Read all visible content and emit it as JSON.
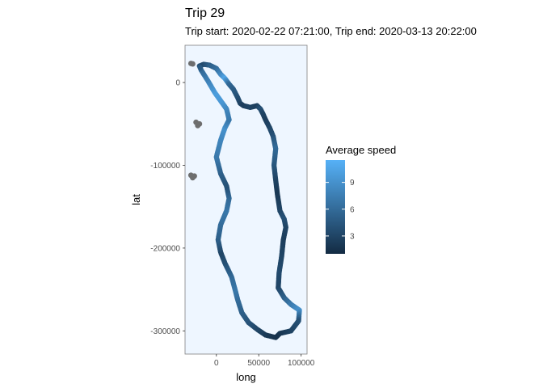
{
  "chart_data": {
    "type": "scatter",
    "title": "Trip 29",
    "subtitle": "Trip start: 2020-02-22 07:21:00, Trip end: 2020-03-13 20:22:00",
    "xlabel": "long",
    "ylabel": "lat",
    "xlim": [
      -37000,
      107000
    ],
    "ylim": [
      -328000,
      45000
    ],
    "x_ticks": [
      0,
      50000,
      100000
    ],
    "x_tick_labels": [
      "0",
      "50000",
      "100000"
    ],
    "y_ticks": [
      0,
      -100000,
      -200000,
      -300000
    ],
    "y_tick_labels": [
      "0",
      "-100000",
      "-200000",
      "-300000"
    ],
    "panel_background": "#eef6ff",
    "panel_border": "#7f7f7f",
    "grid": false,
    "legend": {
      "title": "Average speed",
      "placement": "right",
      "ticks": [
        3,
        6,
        9
      ],
      "tick_labels": [
        "3",
        "6",
        "9"
      ],
      "range": [
        1,
        11.5
      ],
      "color_low": "#132b43",
      "color_high": "#56b1f7"
    },
    "missing_speed_color": "#6e6e6e",
    "track": [
      [
        -20000,
        20000
      ],
      [
        -15000,
        22000
      ],
      [
        -8000,
        21000
      ],
      [
        0,
        17000
      ],
      [
        5000,
        10000
      ],
      [
        10000,
        5000
      ],
      [
        15000,
        -2000
      ],
      [
        20000,
        -8000
      ],
      [
        25000,
        -18000
      ],
      [
        28000,
        -25000
      ],
      [
        32000,
        -28000
      ],
      [
        40000,
        -30000
      ],
      [
        48000,
        -28000
      ],
      [
        52000,
        -32000
      ],
      [
        55000,
        -38000
      ],
      [
        58000,
        -45000
      ],
      [
        63000,
        -55000
      ],
      [
        67000,
        -65000
      ],
      [
        70000,
        -80000
      ],
      [
        68000,
        -100000
      ],
      [
        70000,
        -118000
      ],
      [
        72000,
        -135000
      ],
      [
        75000,
        -155000
      ],
      [
        80000,
        -165000
      ],
      [
        82000,
        -175000
      ],
      [
        79000,
        -190000
      ],
      [
        77000,
        -210000
      ],
      [
        74000,
        -230000
      ],
      [
        73000,
        -248000
      ],
      [
        80000,
        -260000
      ],
      [
        88000,
        -268000
      ],
      [
        98000,
        -275000
      ],
      [
        97000,
        -288000
      ],
      [
        88000,
        -300000
      ],
      [
        75000,
        -303000
      ],
      [
        70000,
        -308000
      ],
      [
        58000,
        -305000
      ],
      [
        48000,
        -298000
      ],
      [
        38000,
        -290000
      ],
      [
        30000,
        -278000
      ],
      [
        25000,
        -262000
      ],
      [
        22000,
        -250000
      ],
      [
        18000,
        -235000
      ],
      [
        10000,
        -218000
      ],
      [
        5000,
        -205000
      ],
      [
        2000,
        -190000
      ],
      [
        5000,
        -172000
      ],
      [
        12000,
        -155000
      ],
      [
        15000,
        -140000
      ],
      [
        12000,
        -125000
      ],
      [
        5000,
        -110000
      ],
      [
        0,
        -90000
      ],
      [
        5000,
        -70000
      ],
      [
        10000,
        -55000
      ],
      [
        15000,
        -45000
      ],
      [
        12000,
        -32000
      ],
      [
        5000,
        -22000
      ],
      [
        -2000,
        -12000
      ],
      [
        -10000,
        2000
      ],
      [
        -18000,
        15000
      ]
    ],
    "track_speed": [
      4,
      3.5,
      5,
      6,
      8,
      10.5,
      6,
      5,
      4,
      3,
      2.5,
      3,
      2.5,
      4,
      3,
      2.5,
      3,
      4,
      6,
      4.5,
      3,
      2,
      3,
      4,
      3,
      2.5,
      3,
      3.5,
      3,
      5,
      7,
      9,
      4,
      3,
      2,
      1.5,
      2,
      3,
      4,
      5,
      6,
      7,
      6,
      4,
      3,
      5,
      6,
      7,
      6,
      4,
      5,
      7,
      8,
      9,
      7,
      8,
      9.5,
      10,
      8,
      6
    ],
    "missing_points": [
      [
        -30000,
        23000
      ],
      [
        -28000,
        22500
      ],
      [
        -24000,
        -48000
      ],
      [
        -22000,
        -52000
      ],
      [
        -20000,
        -50000
      ],
      [
        -30000,
        -112000
      ],
      [
        -28000,
        -115000
      ],
      [
        -26000,
        -113000
      ]
    ]
  }
}
